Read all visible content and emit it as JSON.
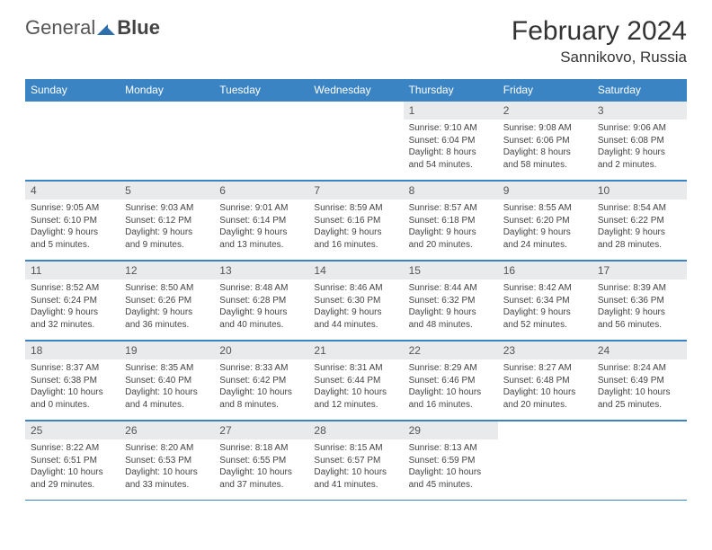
{
  "brand": {
    "part1": "General",
    "part2": "Blue"
  },
  "title": {
    "month": "February 2024",
    "location": "Sannikovo, Russia"
  },
  "colors": {
    "accent": "#3b84c4",
    "cell_header": "#e9eaeb",
    "text": "#333333"
  },
  "dow": [
    "Sunday",
    "Monday",
    "Tuesday",
    "Wednesday",
    "Thursday",
    "Friday",
    "Saturday"
  ],
  "weeks": [
    [
      null,
      null,
      null,
      null,
      {
        "n": "1",
        "sr": "9:10 AM",
        "ss": "6:04 PM",
        "dl": "8 hours and 54 minutes."
      },
      {
        "n": "2",
        "sr": "9:08 AM",
        "ss": "6:06 PM",
        "dl": "8 hours and 58 minutes."
      },
      {
        "n": "3",
        "sr": "9:06 AM",
        "ss": "6:08 PM",
        "dl": "9 hours and 2 minutes."
      }
    ],
    [
      {
        "n": "4",
        "sr": "9:05 AM",
        "ss": "6:10 PM",
        "dl": "9 hours and 5 minutes."
      },
      {
        "n": "5",
        "sr": "9:03 AM",
        "ss": "6:12 PM",
        "dl": "9 hours and 9 minutes."
      },
      {
        "n": "6",
        "sr": "9:01 AM",
        "ss": "6:14 PM",
        "dl": "9 hours and 13 minutes."
      },
      {
        "n": "7",
        "sr": "8:59 AM",
        "ss": "6:16 PM",
        "dl": "9 hours and 16 minutes."
      },
      {
        "n": "8",
        "sr": "8:57 AM",
        "ss": "6:18 PM",
        "dl": "9 hours and 20 minutes."
      },
      {
        "n": "9",
        "sr": "8:55 AM",
        "ss": "6:20 PM",
        "dl": "9 hours and 24 minutes."
      },
      {
        "n": "10",
        "sr": "8:54 AM",
        "ss": "6:22 PM",
        "dl": "9 hours and 28 minutes."
      }
    ],
    [
      {
        "n": "11",
        "sr": "8:52 AM",
        "ss": "6:24 PM",
        "dl": "9 hours and 32 minutes."
      },
      {
        "n": "12",
        "sr": "8:50 AM",
        "ss": "6:26 PM",
        "dl": "9 hours and 36 minutes."
      },
      {
        "n": "13",
        "sr": "8:48 AM",
        "ss": "6:28 PM",
        "dl": "9 hours and 40 minutes."
      },
      {
        "n": "14",
        "sr": "8:46 AM",
        "ss": "6:30 PM",
        "dl": "9 hours and 44 minutes."
      },
      {
        "n": "15",
        "sr": "8:44 AM",
        "ss": "6:32 PM",
        "dl": "9 hours and 48 minutes."
      },
      {
        "n": "16",
        "sr": "8:42 AM",
        "ss": "6:34 PM",
        "dl": "9 hours and 52 minutes."
      },
      {
        "n": "17",
        "sr": "8:39 AM",
        "ss": "6:36 PM",
        "dl": "9 hours and 56 minutes."
      }
    ],
    [
      {
        "n": "18",
        "sr": "8:37 AM",
        "ss": "6:38 PM",
        "dl": "10 hours and 0 minutes."
      },
      {
        "n": "19",
        "sr": "8:35 AM",
        "ss": "6:40 PM",
        "dl": "10 hours and 4 minutes."
      },
      {
        "n": "20",
        "sr": "8:33 AM",
        "ss": "6:42 PM",
        "dl": "10 hours and 8 minutes."
      },
      {
        "n": "21",
        "sr": "8:31 AM",
        "ss": "6:44 PM",
        "dl": "10 hours and 12 minutes."
      },
      {
        "n": "22",
        "sr": "8:29 AM",
        "ss": "6:46 PM",
        "dl": "10 hours and 16 minutes."
      },
      {
        "n": "23",
        "sr": "8:27 AM",
        "ss": "6:48 PM",
        "dl": "10 hours and 20 minutes."
      },
      {
        "n": "24",
        "sr": "8:24 AM",
        "ss": "6:49 PM",
        "dl": "10 hours and 25 minutes."
      }
    ],
    [
      {
        "n": "25",
        "sr": "8:22 AM",
        "ss": "6:51 PM",
        "dl": "10 hours and 29 minutes."
      },
      {
        "n": "26",
        "sr": "8:20 AM",
        "ss": "6:53 PM",
        "dl": "10 hours and 33 minutes."
      },
      {
        "n": "27",
        "sr": "8:18 AM",
        "ss": "6:55 PM",
        "dl": "10 hours and 37 minutes."
      },
      {
        "n": "28",
        "sr": "8:15 AM",
        "ss": "6:57 PM",
        "dl": "10 hours and 41 minutes."
      },
      {
        "n": "29",
        "sr": "8:13 AM",
        "ss": "6:59 PM",
        "dl": "10 hours and 45 minutes."
      },
      null,
      null
    ]
  ],
  "labels": {
    "sunrise": "Sunrise: ",
    "sunset": "Sunset: ",
    "daylight": "Daylight: "
  }
}
